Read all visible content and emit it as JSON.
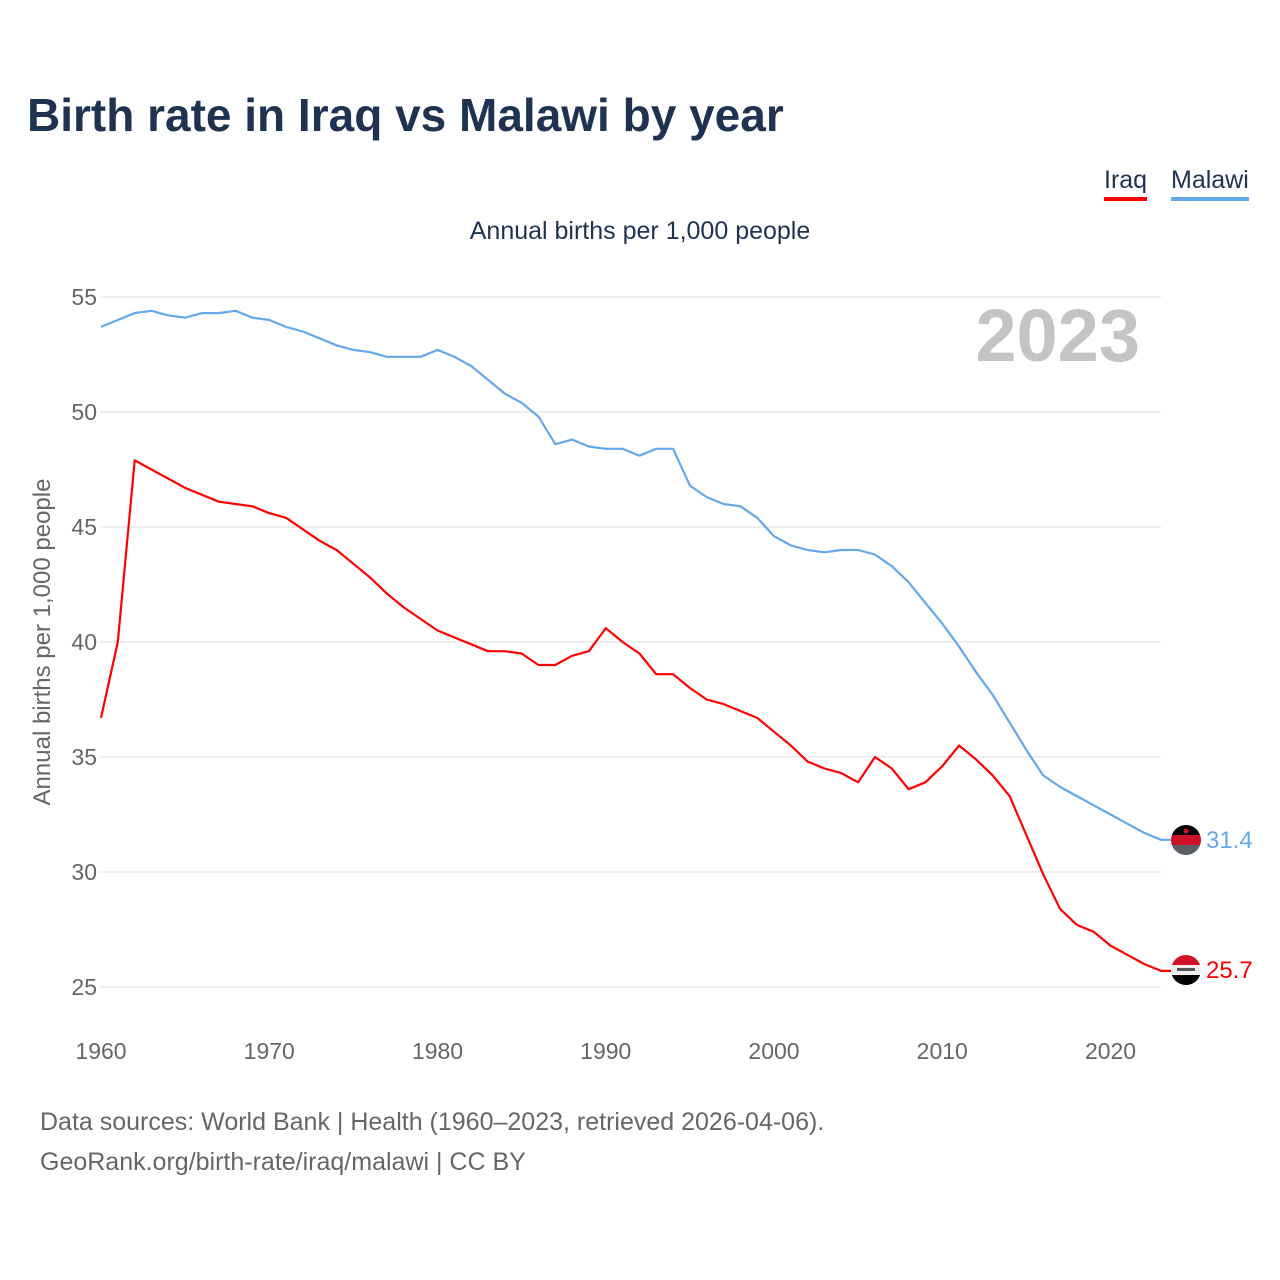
{
  "chart_data": {
    "type": "line",
    "title": "Birth rate in Iraq vs Malawi by year",
    "subtitle": "Annual births per 1,000 people",
    "ylabel": "Annual births per 1,000 people",
    "xlabel": "",
    "year_label": "2023",
    "xlim": [
      1960,
      2023
    ],
    "ylim": [
      25,
      55
    ],
    "yticks": [
      25,
      30,
      35,
      40,
      45,
      50,
      55
    ],
    "xticks": [
      1960,
      1970,
      1980,
      1990,
      2000,
      2010,
      2020
    ],
    "grid": true,
    "legend_position": "top-right",
    "x_start": 1960,
    "series": [
      {
        "name": "Iraq",
        "color": "#ff0000",
        "end_label": "25.7",
        "flag": "iraq-flag",
        "values": [
          36.7,
          40.0,
          47.9,
          47.5,
          47.1,
          46.7,
          46.4,
          46.1,
          46.0,
          45.9,
          45.6,
          45.4,
          44.9,
          44.4,
          44.0,
          43.4,
          42.8,
          42.1,
          41.5,
          41.0,
          40.5,
          40.2,
          39.9,
          39.6,
          39.6,
          39.5,
          39.0,
          39.0,
          39.4,
          39.6,
          40.6,
          40.0,
          39.5,
          38.6,
          38.6,
          38.0,
          37.5,
          37.3,
          37.0,
          36.7,
          36.1,
          35.5,
          34.8,
          34.5,
          34.3,
          33.9,
          35.0,
          34.5,
          33.6,
          33.9,
          34.6,
          35.5,
          34.9,
          34.2,
          33.3,
          31.6,
          29.9,
          28.4,
          27.7,
          27.4,
          26.8,
          26.4,
          26.0,
          25.7
        ]
      },
      {
        "name": "Malawi",
        "color": "#64a8e8",
        "end_label": "31.4",
        "flag": "malawi-flag",
        "values": [
          53.7,
          54.0,
          54.3,
          54.4,
          54.2,
          54.1,
          54.3,
          54.3,
          54.4,
          54.1,
          54.0,
          53.7,
          53.5,
          53.2,
          52.9,
          52.7,
          52.6,
          52.4,
          52.4,
          52.4,
          52.7,
          52.4,
          52.0,
          51.4,
          50.8,
          50.4,
          49.8,
          48.6,
          48.8,
          48.5,
          48.4,
          48.4,
          48.1,
          48.4,
          48.4,
          46.8,
          46.3,
          46.0,
          45.9,
          45.4,
          44.6,
          44.2,
          44.0,
          43.9,
          44.0,
          44.0,
          43.8,
          43.3,
          42.6,
          41.7,
          40.8,
          39.8,
          38.7,
          37.7,
          36.5,
          35.3,
          34.2,
          33.7,
          33.3,
          32.9,
          32.5,
          32.1,
          31.7,
          31.4
        ]
      }
    ]
  },
  "footer": {
    "source": "Data sources: World Bank | Health (1960–2023, retrieved 2026-04-06).",
    "link": "GeoRank.org/birth-rate/iraq/malawi | CC BY"
  }
}
